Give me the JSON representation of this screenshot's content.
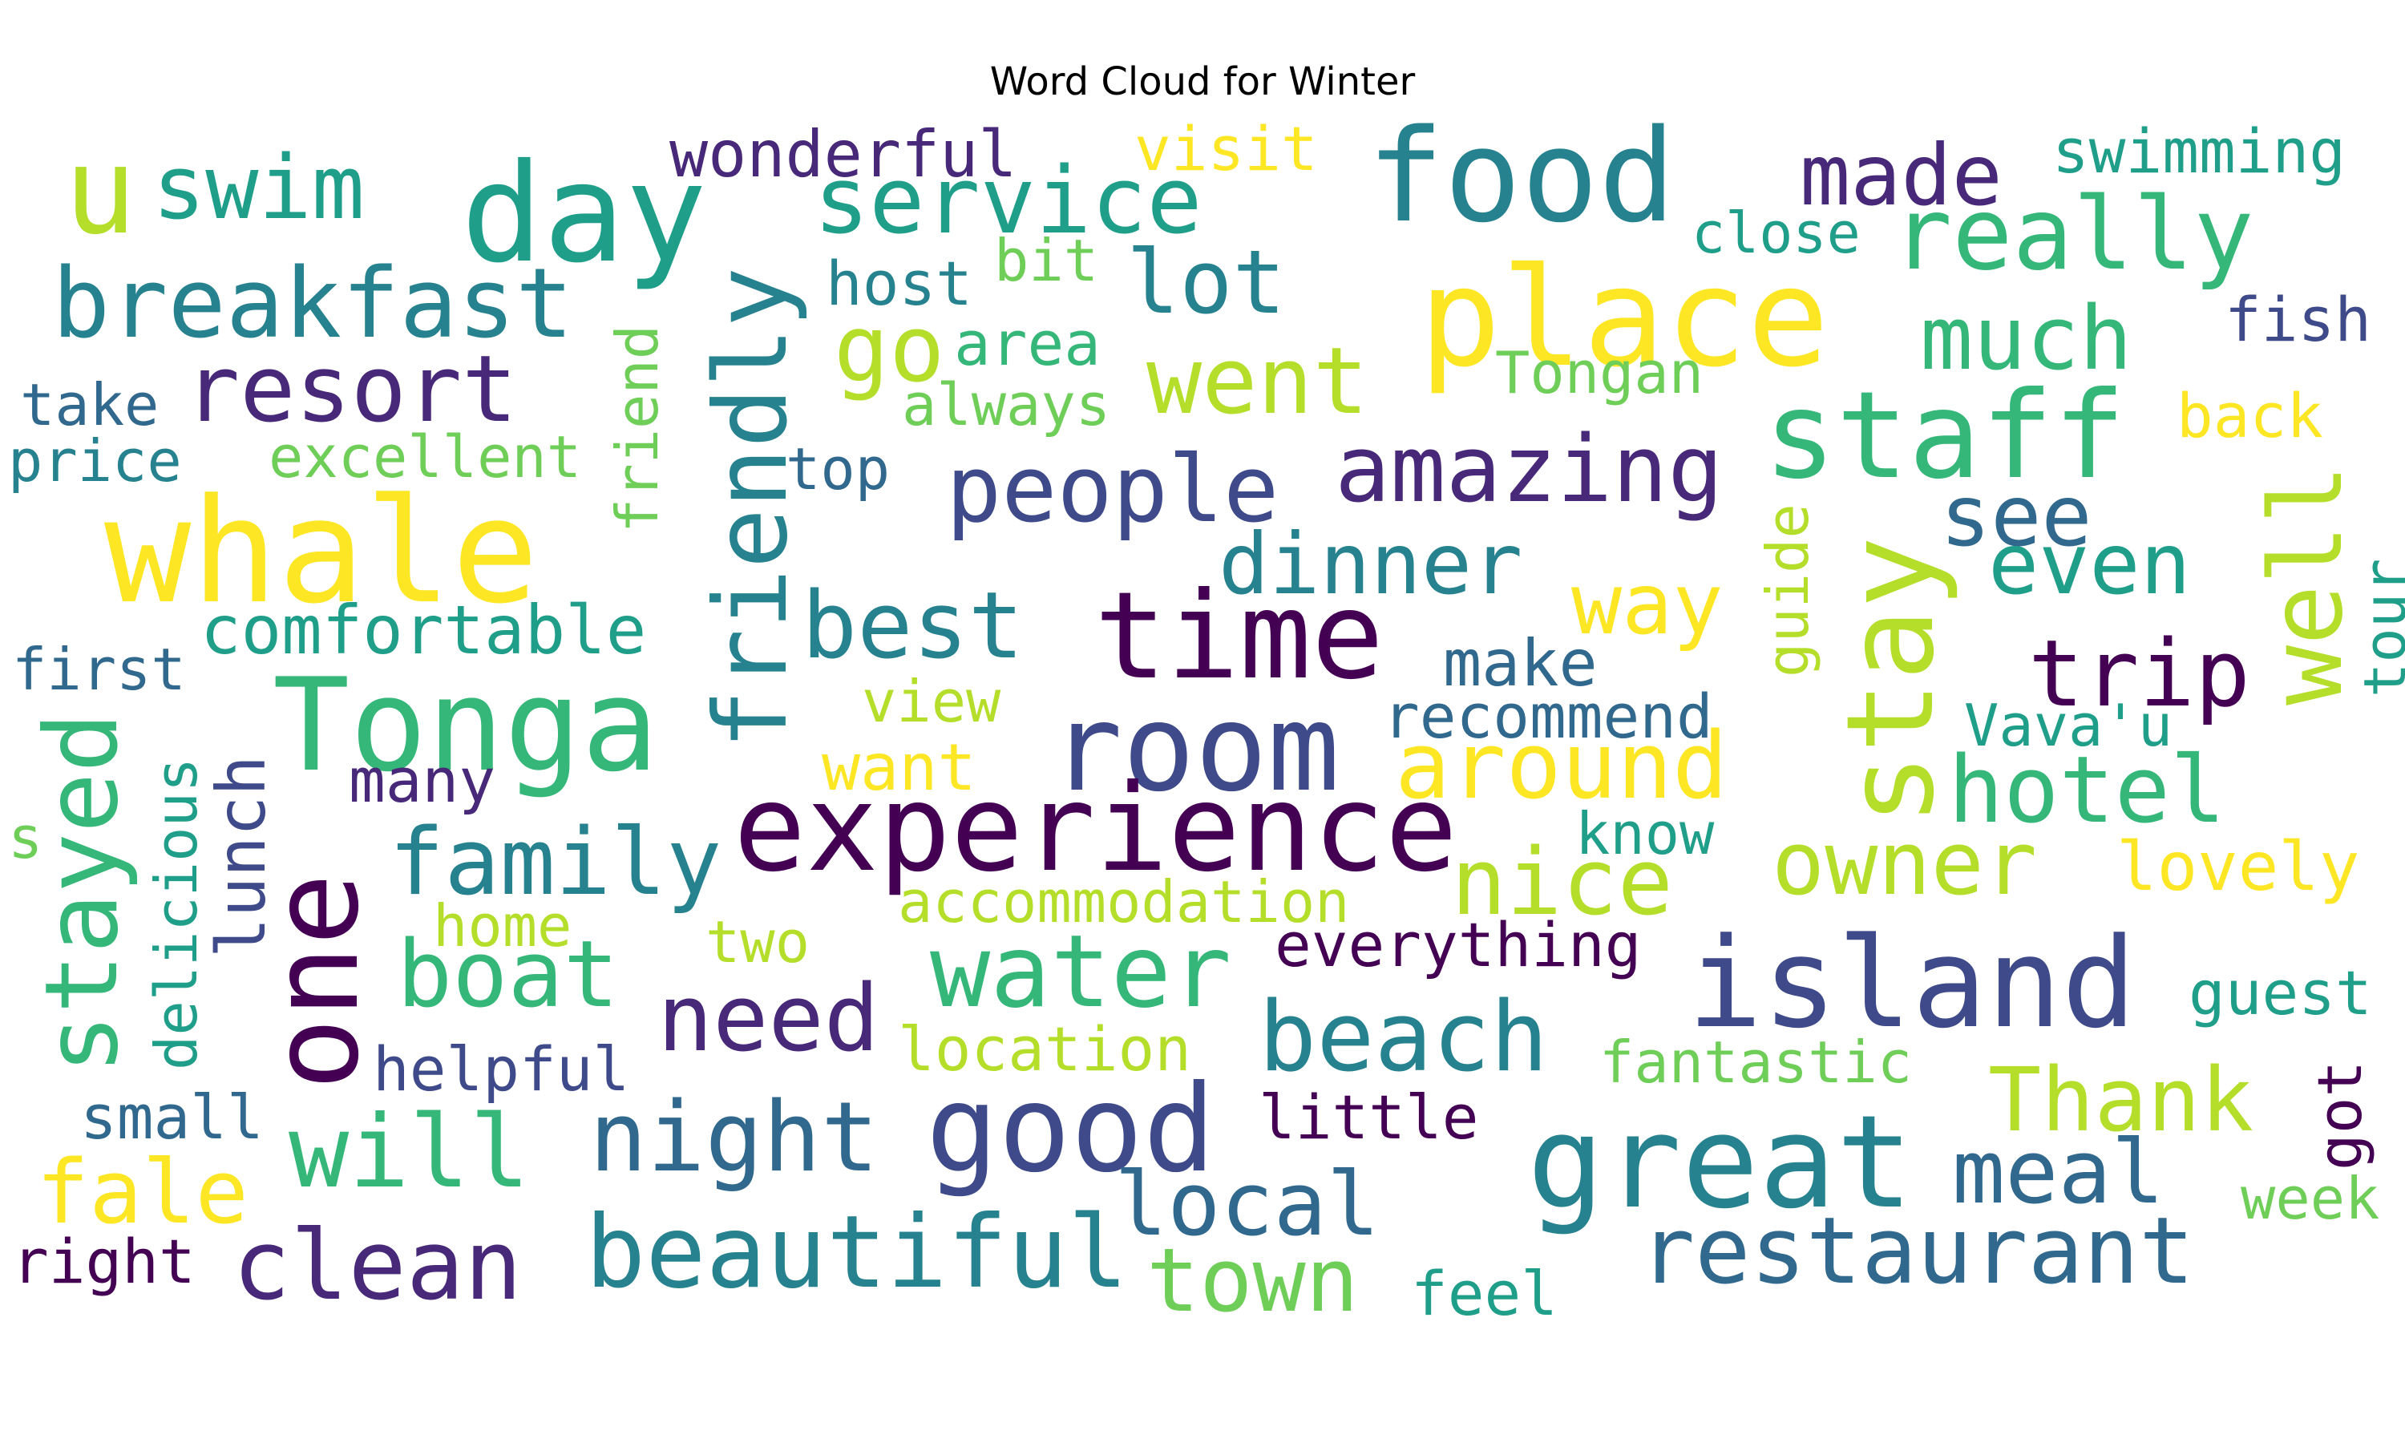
{
  "title": "Word Cloud for Winter",
  "palette": {
    "d1": "#440154",
    "d2": "#482878",
    "p1": "#3e4a89",
    "p2": "#31688e",
    "t1": "#26828e",
    "t2": "#1f9e89",
    "g1": "#35b779",
    "g2": "#6ece58",
    "y1": "#b5de2b",
    "y2": "#fde725"
  },
  "words": [
    {
      "text": "u",
      "color": "y1"
    },
    {
      "text": "swim",
      "color": "t2"
    },
    {
      "text": "day",
      "color": "t2"
    },
    {
      "text": "wonderful",
      "color": "d2"
    },
    {
      "text": "visit",
      "color": "y2"
    },
    {
      "text": "food",
      "color": "t1"
    },
    {
      "text": "made",
      "color": "d2"
    },
    {
      "text": "swimming",
      "color": "t2"
    },
    {
      "text": "service",
      "color": "t2"
    },
    {
      "text": "really",
      "color": "g1"
    },
    {
      "text": "close",
      "color": "t2"
    },
    {
      "text": "breakfast",
      "color": "t1"
    },
    {
      "text": "host",
      "color": "t1"
    },
    {
      "text": "bit",
      "color": "g2"
    },
    {
      "text": "lot",
      "color": "t1"
    },
    {
      "text": "place",
      "color": "y2"
    },
    {
      "text": "fish",
      "color": "p1"
    },
    {
      "text": "much",
      "color": "g1"
    },
    {
      "text": "friendly",
      "color": "t1"
    },
    {
      "text": "go",
      "color": "y1"
    },
    {
      "text": "area",
      "color": "g1"
    },
    {
      "text": "went",
      "color": "y1"
    },
    {
      "text": "Tongan",
      "color": "g2"
    },
    {
      "text": "take",
      "color": "p2"
    },
    {
      "text": "resort",
      "color": "d2"
    },
    {
      "text": "always",
      "color": "g2"
    },
    {
      "text": "staff",
      "color": "g1"
    },
    {
      "text": "back",
      "color": "y2"
    },
    {
      "text": "price",
      "color": "t1"
    },
    {
      "text": "excellent",
      "color": "g2"
    },
    {
      "text": "friend",
      "color": "g2"
    },
    {
      "text": "top",
      "color": "p2"
    },
    {
      "text": "people",
      "color": "p1"
    },
    {
      "text": "amazing",
      "color": "d2"
    },
    {
      "text": "see",
      "color": "p2"
    },
    {
      "text": "whale",
      "color": "y2"
    },
    {
      "text": "dinner",
      "color": "t1"
    },
    {
      "text": "even",
      "color": "t2"
    },
    {
      "text": "well",
      "color": "y1"
    },
    {
      "text": "guide",
      "color": "y1"
    },
    {
      "text": "stay",
      "color": "y1"
    },
    {
      "text": "tour",
      "color": "t2"
    },
    {
      "text": "comfortable",
      "color": "t2"
    },
    {
      "text": "best",
      "color": "t1"
    },
    {
      "text": "time",
      "color": "d1"
    },
    {
      "text": "way",
      "color": "y2"
    },
    {
      "text": "trip",
      "color": "d1"
    },
    {
      "text": "first",
      "color": "p2"
    },
    {
      "text": "make",
      "color": "p2"
    },
    {
      "text": "Tonga",
      "color": "g1"
    },
    {
      "text": "view",
      "color": "y1"
    },
    {
      "text": "room",
      "color": "p1"
    },
    {
      "text": "recommend",
      "color": "p2"
    },
    {
      "text": "Vava'u",
      "color": "t2"
    },
    {
      "text": "stayed",
      "color": "g1"
    },
    {
      "text": "many",
      "color": "d2"
    },
    {
      "text": "want",
      "color": "y2"
    },
    {
      "text": "around",
      "color": "y2"
    },
    {
      "text": "hotel",
      "color": "g1"
    },
    {
      "text": "lunch",
      "color": "p1"
    },
    {
      "text": "delicious",
      "color": "t2"
    },
    {
      "text": "s",
      "color": "g2"
    },
    {
      "text": "experience",
      "color": "d1"
    },
    {
      "text": "know",
      "color": "t2"
    },
    {
      "text": "family",
      "color": "t1"
    },
    {
      "text": "nice",
      "color": "y1"
    },
    {
      "text": "owner",
      "color": "y1"
    },
    {
      "text": "lovely",
      "color": "y2"
    },
    {
      "text": "one",
      "color": "d1"
    },
    {
      "text": "accommodation",
      "color": "y1"
    },
    {
      "text": "home",
      "color": "y1"
    },
    {
      "text": "two",
      "color": "y1"
    },
    {
      "text": "boat",
      "color": "g1"
    },
    {
      "text": "water",
      "color": "g1"
    },
    {
      "text": "everything",
      "color": "d1"
    },
    {
      "text": "island",
      "color": "p1"
    },
    {
      "text": "guest",
      "color": "t2"
    },
    {
      "text": "need",
      "color": "d2"
    },
    {
      "text": "location",
      "color": "y1"
    },
    {
      "text": "beach",
      "color": "t1"
    },
    {
      "text": "fantastic",
      "color": "g2"
    },
    {
      "text": "helpful",
      "color": "p1"
    },
    {
      "text": "good",
      "color": "p1"
    },
    {
      "text": "Thank",
      "color": "y1"
    },
    {
      "text": "got",
      "color": "d1"
    },
    {
      "text": "small",
      "color": "p2"
    },
    {
      "text": "will",
      "color": "g1"
    },
    {
      "text": "night",
      "color": "p2"
    },
    {
      "text": "little",
      "color": "d1"
    },
    {
      "text": "great",
      "color": "t1"
    },
    {
      "text": "meal",
      "color": "p2"
    },
    {
      "text": "week",
      "color": "g2"
    },
    {
      "text": "fale",
      "color": "y2"
    },
    {
      "text": "local",
      "color": "p2"
    },
    {
      "text": "restaurant",
      "color": "p2"
    },
    {
      "text": "right",
      "color": "d1"
    },
    {
      "text": "clean",
      "color": "d2"
    },
    {
      "text": "beautiful",
      "color": "t1"
    },
    {
      "text": "town",
      "color": "g2"
    },
    {
      "text": "feel",
      "color": "t2"
    }
  ]
}
